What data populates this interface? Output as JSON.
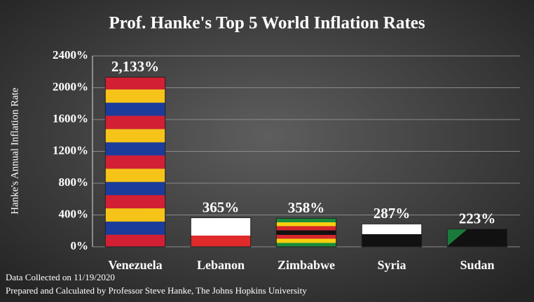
{
  "chart_data": {
    "type": "bar",
    "title": "Prof. Hanke's Top 5 World Inflation Rates",
    "y_label": "Hanke's Annual Inflation Rate",
    "categories": [
      "Venezuela",
      "Lebanon",
      "Zimbabwe",
      "Syria",
      "Sudan"
    ],
    "values": [
      2133,
      365,
      358,
      287,
      223
    ],
    "value_labels": [
      "2,133%",
      "365%",
      "358%",
      "287%",
      "223%"
    ],
    "ylim": [
      0,
      2400
    ],
    "yticks": [
      {
        "value": 0,
        "label": "0%"
      },
      {
        "value": 400,
        "label": "400%"
      },
      {
        "value": 800,
        "label": "800%"
      },
      {
        "value": 1200,
        "label": "1200%"
      },
      {
        "value": 1600,
        "label": "1600%"
      },
      {
        "value": 2000,
        "label": "2000%"
      },
      {
        "value": 2400,
        "label": "2400%"
      }
    ],
    "grid": true,
    "notes": [
      "Data Collected on 11/19/2020",
      "Prepared and Calculated by Professor Steve Hanke, The Johns Hopkins University"
    ]
  }
}
